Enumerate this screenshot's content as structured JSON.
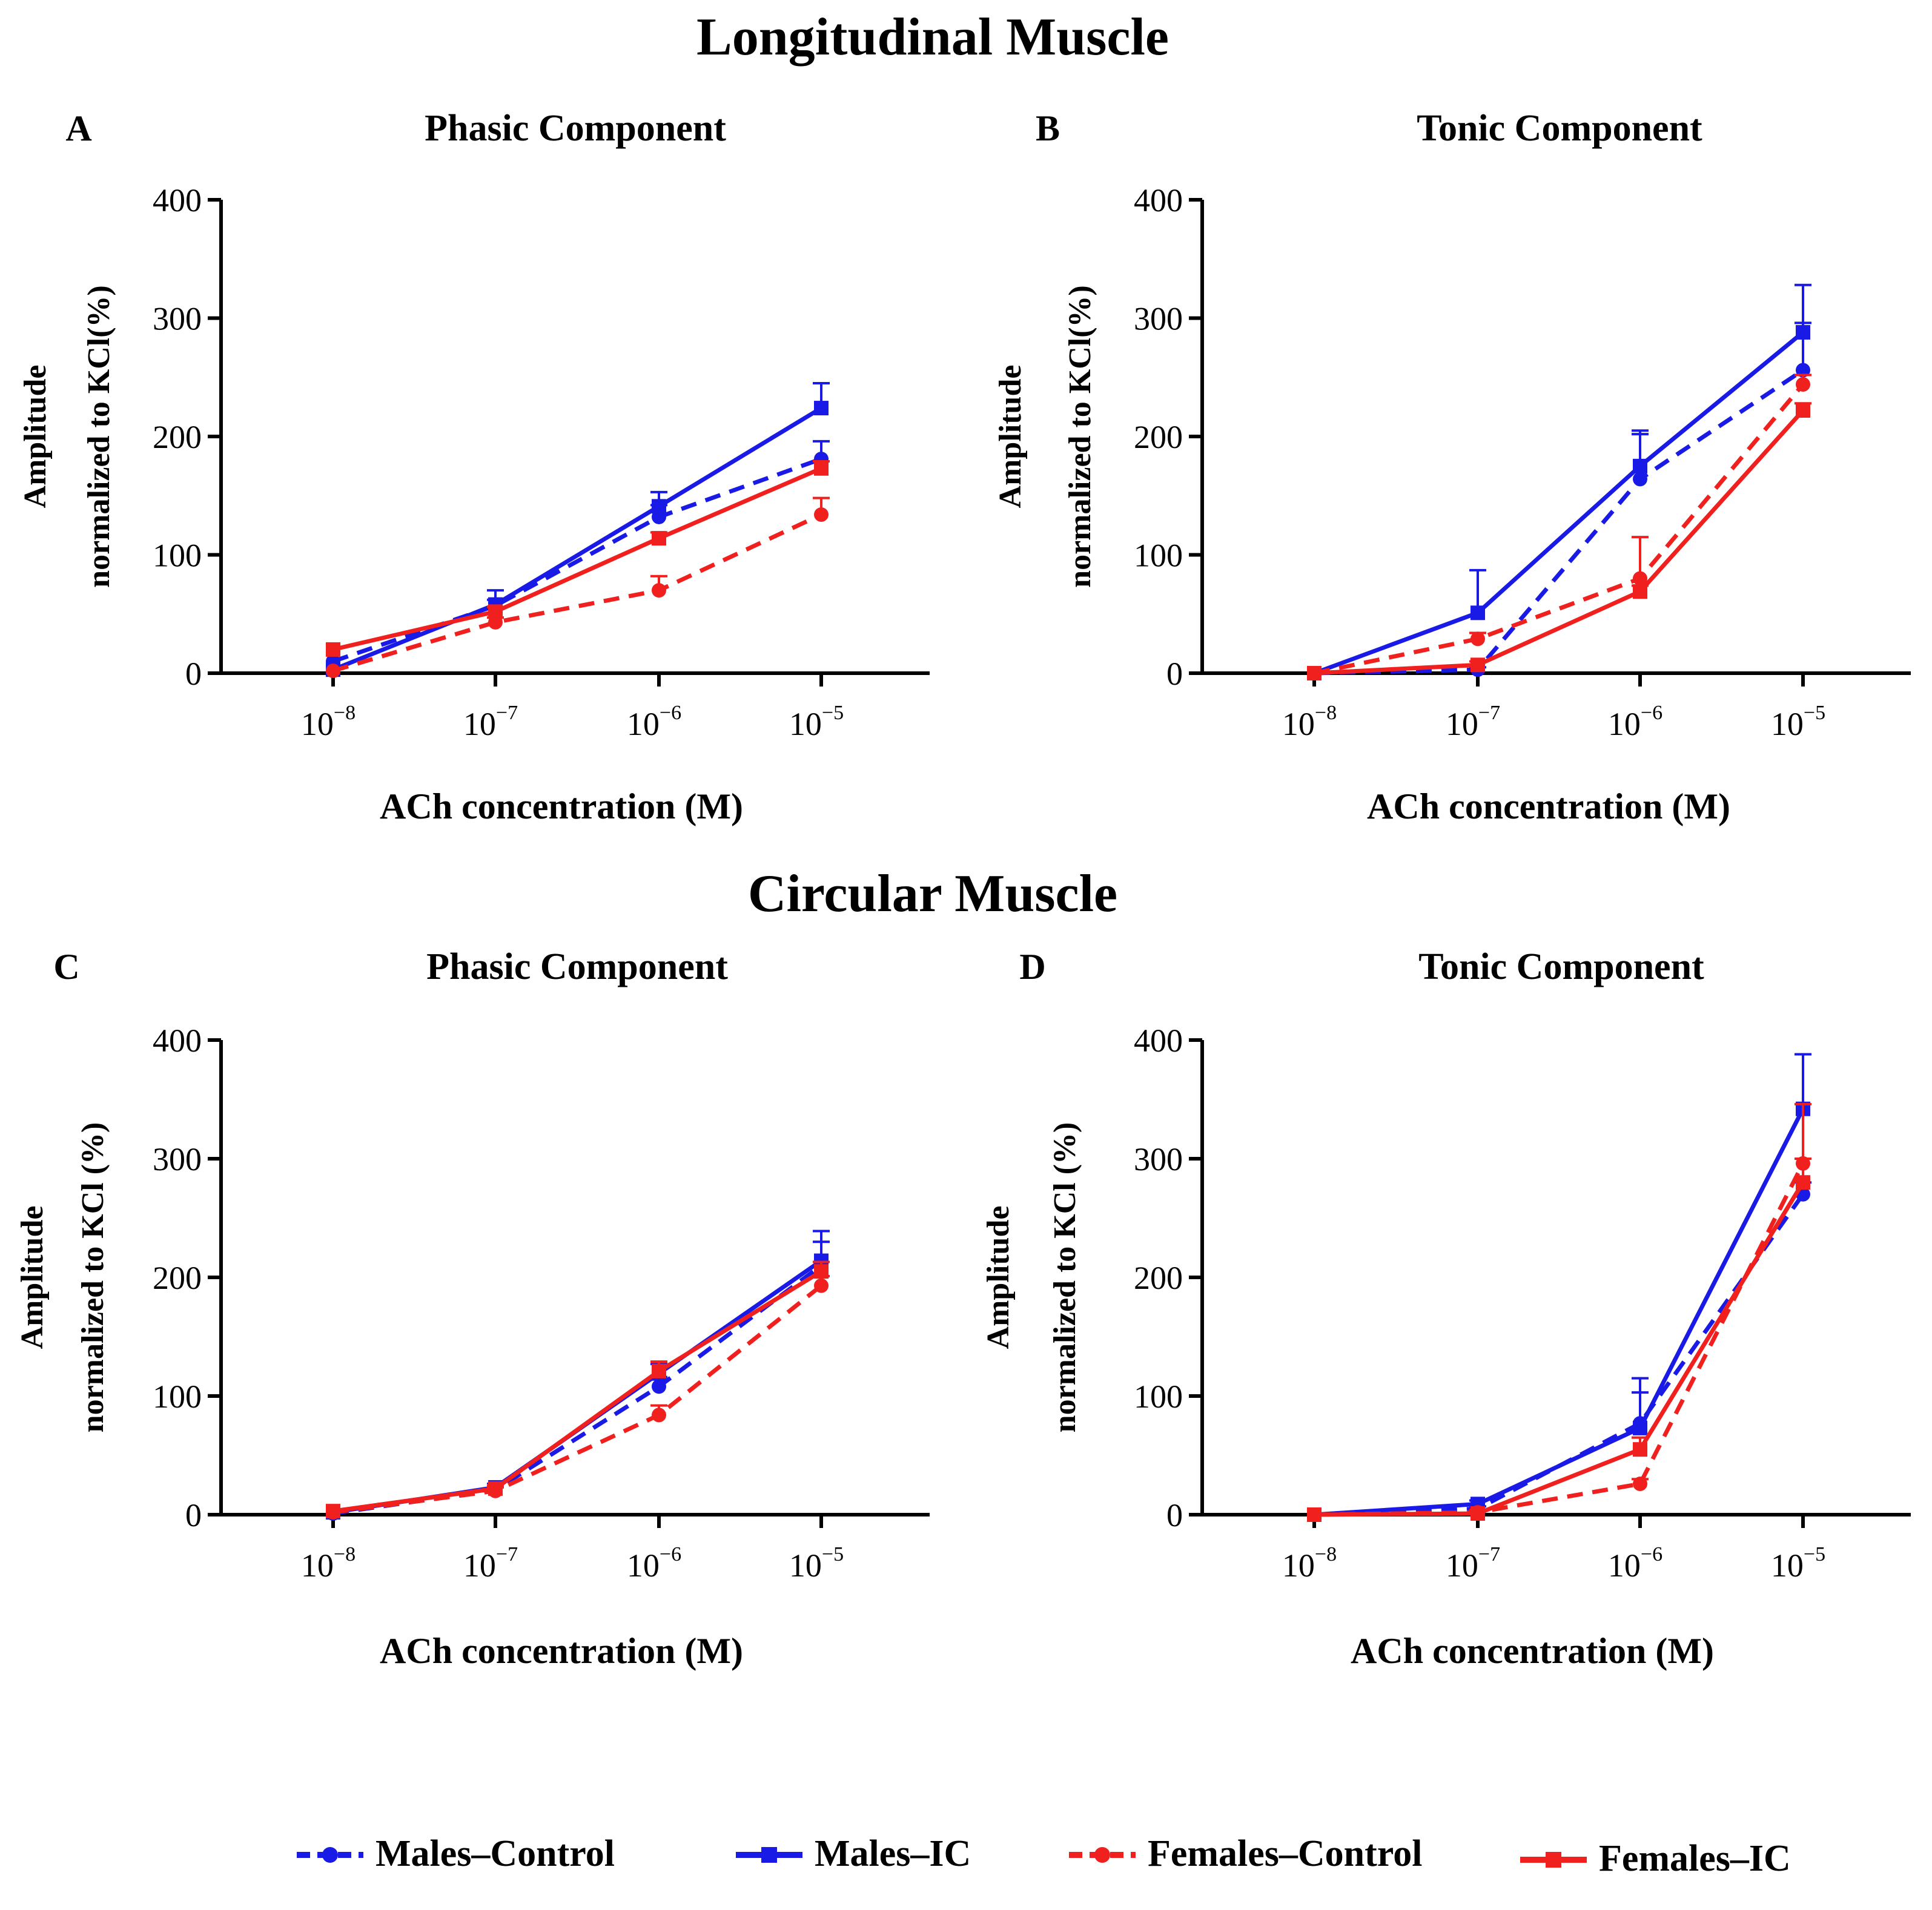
{
  "sections": [
    {
      "title": "Longitudinal Muscle"
    },
    {
      "title": "Circular Muscle"
    }
  ],
  "series_styles": [
    {
      "name": "Males–Control",
      "color": "#1a1ae6",
      "dash": true,
      "marker": "circle"
    },
    {
      "name": "Males–IC",
      "color": "#1a1ae6",
      "dash": false,
      "marker": "square"
    },
    {
      "name": "Females–Control",
      "color": "#f0201e",
      "dash": true,
      "marker": "circle"
    },
    {
      "name": "Females–IC",
      "color": "#f0201e",
      "dash": false,
      "marker": "square"
    }
  ],
  "legend": [
    {
      "label": "Males–Control"
    },
    {
      "label": "Males–IC"
    },
    {
      "label": "Females–Control"
    },
    {
      "label": "Females–IC"
    }
  ],
  "chart_data": [
    {
      "type": "line",
      "panel": "A",
      "title": "Phasic Component",
      "ylabel_line1": "Amplitude",
      "ylabel_line2": "normalized to KCl(%)",
      "xlabel": "ACh concentration (M)",
      "x_base": "10",
      "x_exponents": [
        "−8",
        "−7",
        "−6",
        "−5"
      ],
      "ylim": [
        0,
        400
      ],
      "yticks": [
        0,
        100,
        200,
        300,
        400
      ],
      "series": [
        {
          "name": "Males–Control",
          "values": [
            10,
            57,
            132,
            181
          ],
          "errors": [
            0,
            5,
            10,
            15
          ]
        },
        {
          "name": "Males–IC",
          "values": [
            3,
            58,
            141,
            224
          ],
          "errors": [
            0,
            12,
            12,
            21
          ]
        },
        {
          "name": "Females–Control",
          "values": [
            2,
            43,
            70,
            134
          ],
          "errors": [
            0,
            4,
            12,
            14
          ]
        },
        {
          "name": "Females–IC",
          "values": [
            20,
            52,
            114,
            173
          ],
          "errors": [
            0,
            4,
            5,
            6
          ]
        }
      ]
    },
    {
      "type": "line",
      "panel": "B",
      "title": "Tonic Component",
      "ylabel_line1": "Amplitude",
      "ylabel_line2": "normalized to KCl(%)",
      "xlabel": "ACh concentration (M)",
      "x_base": "10",
      "x_exponents": [
        "−8",
        "−7",
        "−6",
        "−5"
      ],
      "ylim": [
        0,
        400
      ],
      "yticks": [
        0,
        100,
        200,
        300,
        400
      ],
      "series": [
        {
          "name": "Males–Control",
          "values": [
            0,
            3,
            164,
            256
          ],
          "errors": [
            0,
            2,
            38,
            40
          ]
        },
        {
          "name": "Males–IC",
          "values": [
            0,
            51,
            175,
            288
          ],
          "errors": [
            0,
            36,
            30,
            40
          ]
        },
        {
          "name": "Females–Control",
          "values": [
            0,
            29,
            80,
            244
          ],
          "errors": [
            0,
            5,
            35,
            8
          ]
        },
        {
          "name": "Females–IC",
          "values": [
            0,
            7,
            69,
            222
          ],
          "errors": [
            0,
            3,
            5,
            6
          ]
        }
      ]
    },
    {
      "type": "line",
      "panel": "C",
      "title": "Phasic Component",
      "ylabel_line1": "Amplitude",
      "ylabel_line2": "normalized to KCl (%)",
      "xlabel": "ACh concentration (M)",
      "x_base": "10",
      "x_exponents": [
        "−8",
        "−7",
        "−6",
        "−5"
      ],
      "ylim": [
        0,
        400
      ],
      "yticks": [
        0,
        100,
        200,
        300,
        400
      ],
      "series": [
        {
          "name": "Males–Control",
          "values": [
            1,
            21,
            108,
            210
          ],
          "errors": [
            0,
            3,
            8,
            20
          ]
        },
        {
          "name": "Males–IC",
          "values": [
            2,
            23,
            119,
            214
          ],
          "errors": [
            0,
            3,
            8,
            25
          ]
        },
        {
          "name": "Females–Control",
          "values": [
            2,
            20,
            84,
            193
          ],
          "errors": [
            0,
            3,
            8,
            8
          ]
        },
        {
          "name": "Females–IC",
          "values": [
            3,
            22,
            121,
            205
          ],
          "errors": [
            0,
            3,
            8,
            8
          ]
        }
      ]
    },
    {
      "type": "line",
      "panel": "D",
      "title": "Tonic Component",
      "ylabel_line1": "Amplitude",
      "ylabel_line2": "normalized to KCl (%)",
      "xlabel": "ACh concentration (M)",
      "x_base": "10",
      "x_exponents": [
        "−8",
        "−7",
        "−6",
        "−5"
      ],
      "ylim": [
        0,
        400
      ],
      "yticks": [
        0,
        100,
        200,
        300,
        400
      ],
      "series": [
        {
          "name": "Males–Control",
          "values": [
            0,
            5,
            77,
            270
          ],
          "errors": [
            0,
            2,
            38,
            10
          ]
        },
        {
          "name": "Males–IC",
          "values": [
            0,
            9,
            73,
            342
          ],
          "errors": [
            0,
            3,
            30,
            46
          ]
        },
        {
          "name": "Females–Control",
          "values": [
            0,
            2,
            26,
            296
          ],
          "errors": [
            0,
            2,
            4,
            50
          ]
        },
        {
          "name": "Females–IC",
          "values": [
            0,
            1,
            55,
            280
          ],
          "errors": [
            0,
            2,
            10,
            20
          ]
        }
      ]
    }
  ]
}
